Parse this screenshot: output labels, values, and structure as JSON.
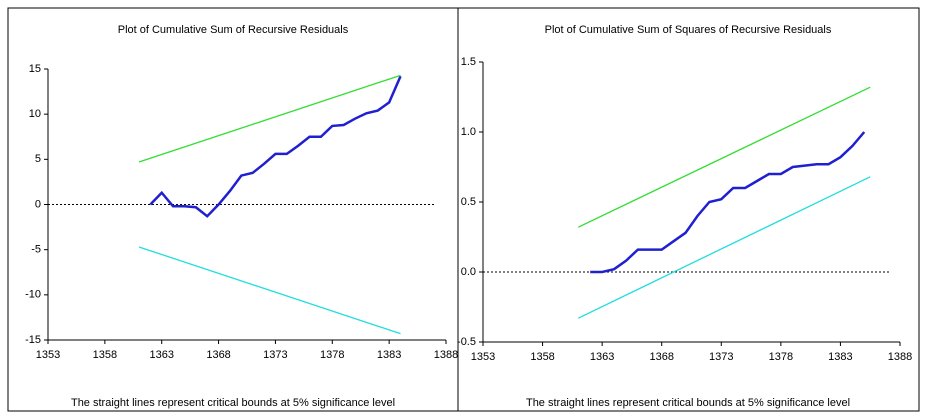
{
  "chart_data": [
    {
      "type": "line",
      "title": "Plot of Cumulative Sum of Recursive Residuals",
      "footnote": "The straight lines represent critical bounds at 5% significance level",
      "xlim": [
        1353,
        1388
      ],
      "xticks": [
        1353,
        1358,
        1363,
        1368,
        1373,
        1378,
        1383,
        1388
      ],
      "ylim": [
        -15,
        15
      ],
      "yticks": [
        15,
        10,
        5,
        0,
        -5,
        -10,
        -15
      ],
      "zero_line": true,
      "series": [
        {
          "color": "#2020d0",
          "x": [
            1362,
            1363,
            1364,
            1365,
            1366,
            1367,
            1368,
            1369,
            1370,
            1371,
            1372,
            1373,
            1374,
            1375,
            1376,
            1377,
            1378,
            1379,
            1380,
            1381,
            1382,
            1383,
            1384
          ],
          "values": [
            0,
            1.3,
            -0.2,
            -0.2,
            -0.3,
            -1.3,
            0,
            1.5,
            3.2,
            3.5,
            4.5,
            5.6,
            5.6,
            6.5,
            7.5,
            7.5,
            8.7,
            8.8,
            9.5,
            10.1,
            10.4,
            11.3,
            14.2
          ]
        },
        {
          "color": "#33dd33",
          "x": [
            1361,
            1384
          ],
          "values": [
            4.7,
            14.3
          ]
        },
        {
          "color": "#22dddd",
          "x": [
            1361,
            1384
          ],
          "values": [
            -4.7,
            -14.3
          ]
        }
      ]
    },
    {
      "type": "line",
      "title": "Plot of Cumulative Sum of Squares of Recursive Residuals",
      "footnote": "The straight lines represent critical bounds at 5% significance level",
      "xlim": [
        1353,
        1388
      ],
      "xticks": [
        1353,
        1358,
        1363,
        1368,
        1373,
        1378,
        1383,
        1388
      ],
      "ylim": [
        -0.5,
        1.5
      ],
      "yticks": [
        1.5,
        {
          "value": 1,
          "label": "1.0"
        },
        0.5,
        {
          "value": 0,
          "label": "0.0"
        },
        -0.5
      ],
      "zero_line": true,
      "series": [
        {
          "color": "#2020d0",
          "x": [
            1362,
            1363,
            1364,
            1365,
            1366,
            1367,
            1368,
            1369,
            1370,
            1371,
            1372,
            1373,
            1374,
            1375,
            1376,
            1377,
            1378,
            1379,
            1380,
            1381,
            1382,
            1383,
            1384,
            1385
          ],
          "values": [
            0,
            0,
            0.02,
            0.08,
            0.16,
            0.16,
            0.16,
            0.22,
            0.28,
            0.4,
            0.5,
            0.52,
            0.6,
            0.6,
            0.65,
            0.7,
            0.7,
            0.75,
            0.76,
            0.77,
            0.77,
            0.82,
            0.9,
            1.0
          ]
        },
        {
          "color": "#33dd33",
          "x": [
            1361,
            1385.5
          ],
          "values": [
            0.32,
            1.32
          ]
        },
        {
          "color": "#22dddd",
          "x": [
            1361,
            1385.5
          ],
          "values": [
            -0.33,
            0.68
          ]
        }
      ]
    }
  ]
}
